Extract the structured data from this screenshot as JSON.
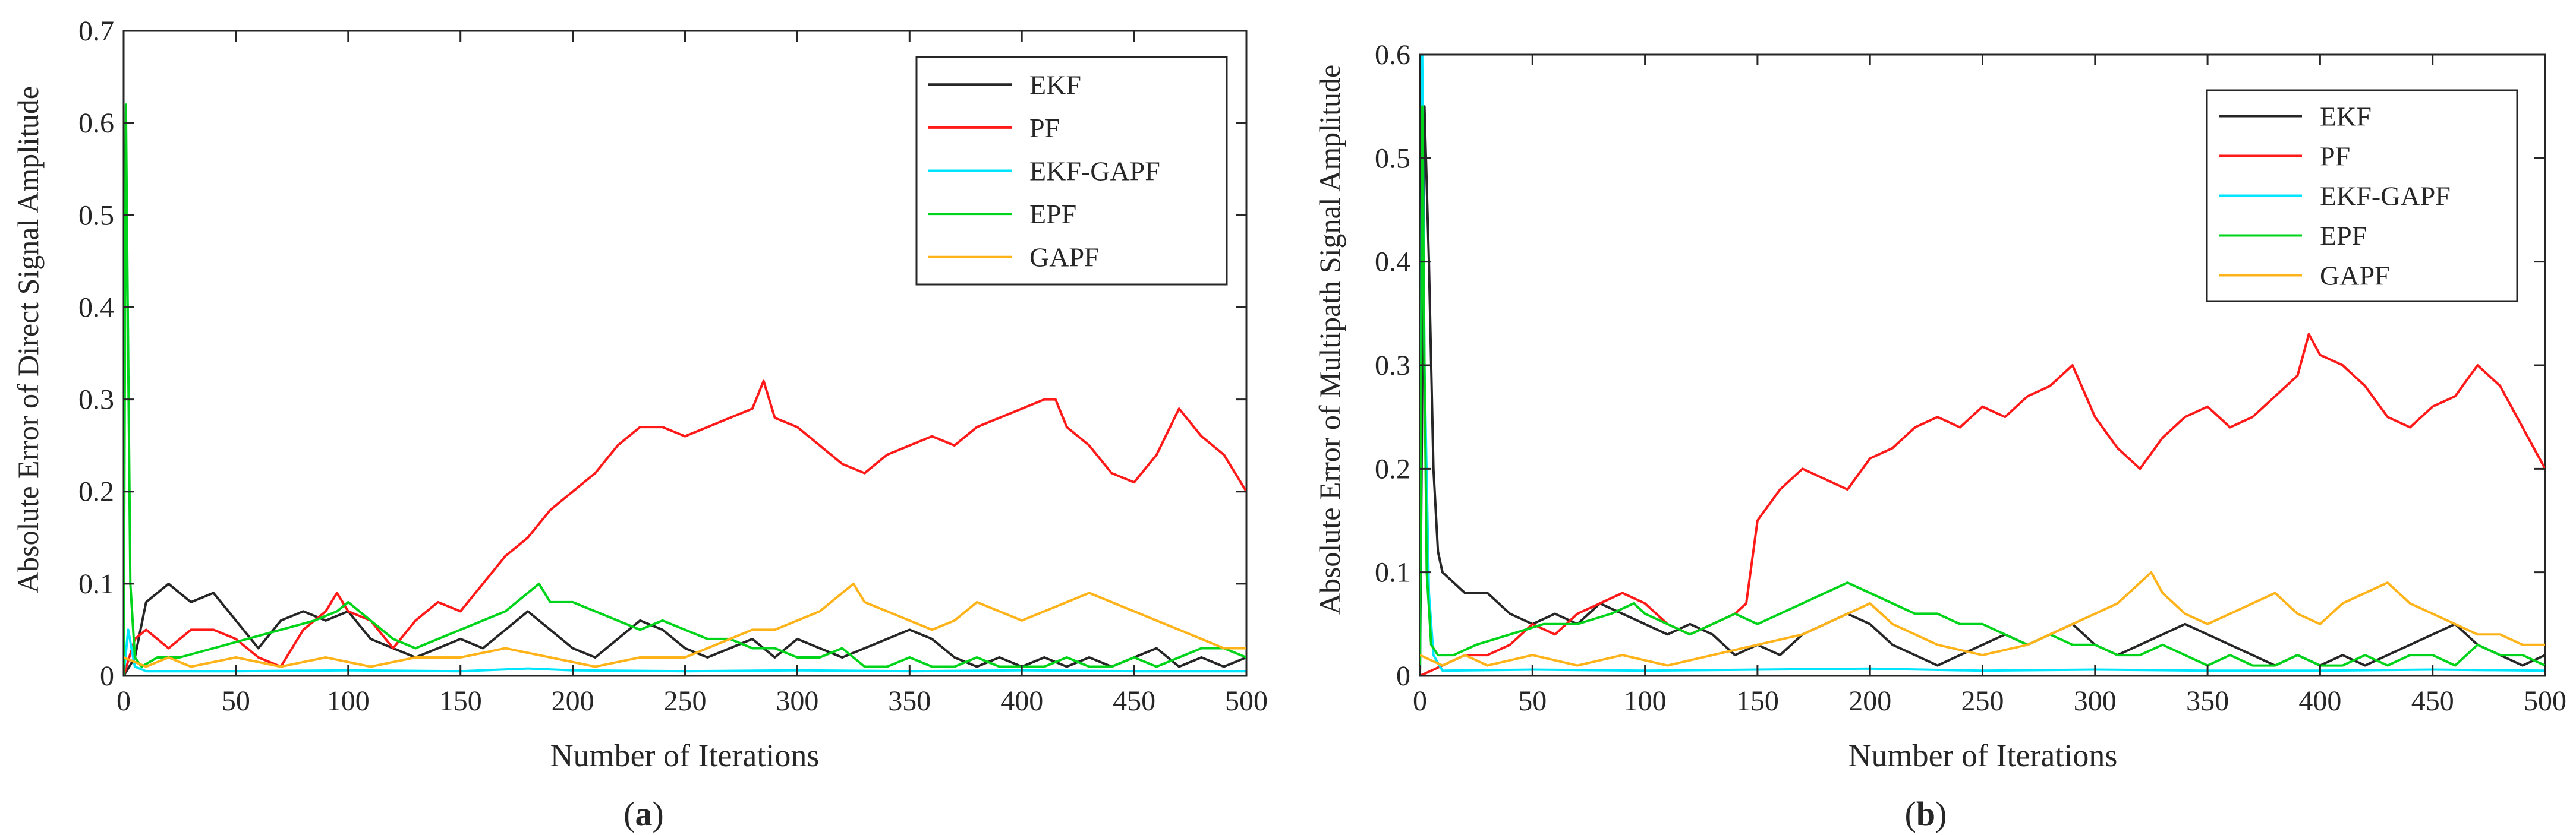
{
  "chart_data": [
    {
      "type": "line",
      "panel_label": "(a)",
      "panel_letter": "a",
      "title": "",
      "xlabel": "Number of Iterations",
      "ylabel": "Absolute Error of Direct Signal Amplitude",
      "xlim": [
        0,
        500
      ],
      "ylim": [
        0,
        0.7
      ],
      "xticks": [
        0,
        50,
        100,
        150,
        200,
        250,
        300,
        350,
        400,
        450,
        500
      ],
      "xtick_labels": [
        "0",
        "50",
        "100",
        "150",
        "200",
        "250",
        "300",
        "350",
        "400",
        "450",
        "500"
      ],
      "yticks": [
        0,
        0.1,
        0.2,
        0.3,
        0.4,
        0.5,
        0.6,
        0.7
      ],
      "ytick_labels": [
        "0",
        "0.1",
        "0.2",
        "0.3",
        "0.4",
        "0.5",
        "0.6",
        "0.7"
      ],
      "grid": false,
      "legend_position": "top-right",
      "series": [
        {
          "name": "EKF",
          "color": "#262626",
          "x": [
            0,
            5,
            10,
            15,
            20,
            25,
            30,
            40,
            50,
            60,
            70,
            80,
            90,
            100,
            110,
            120,
            130,
            140,
            150,
            160,
            170,
            180,
            190,
            200,
            210,
            220,
            230,
            240,
            250,
            260,
            270,
            280,
            290,
            300,
            310,
            320,
            330,
            340,
            350,
            360,
            370,
            380,
            390,
            400,
            410,
            420,
            430,
            440,
            450,
            460,
            470,
            480,
            490,
            500
          ],
          "values": [
            0.0,
            0.02,
            0.08,
            0.09,
            0.1,
            0.09,
            0.08,
            0.09,
            0.06,
            0.03,
            0.06,
            0.07,
            0.06,
            0.07,
            0.04,
            0.03,
            0.02,
            0.03,
            0.04,
            0.03,
            0.05,
            0.07,
            0.05,
            0.03,
            0.02,
            0.04,
            0.06,
            0.05,
            0.03,
            0.02,
            0.03,
            0.04,
            0.02,
            0.04,
            0.03,
            0.02,
            0.03,
            0.04,
            0.05,
            0.04,
            0.02,
            0.01,
            0.02,
            0.01,
            0.02,
            0.01,
            0.02,
            0.01,
            0.02,
            0.03,
            0.01,
            0.02,
            0.01,
            0.02
          ]
        },
        {
          "name": "PF",
          "color": "#ff1a1a",
          "x": [
            0,
            5,
            10,
            15,
            20,
            30,
            40,
            50,
            60,
            70,
            80,
            90,
            95,
            100,
            110,
            120,
            130,
            140,
            150,
            160,
            170,
            180,
            190,
            200,
            210,
            220,
            230,
            240,
            250,
            260,
            270,
            280,
            285,
            290,
            300,
            310,
            320,
            330,
            340,
            350,
            360,
            370,
            380,
            390,
            400,
            410,
            415,
            420,
            430,
            440,
            450,
            460,
            470,
            480,
            490,
            500
          ],
          "values": [
            0.0,
            0.04,
            0.05,
            0.04,
            0.03,
            0.05,
            0.05,
            0.04,
            0.02,
            0.01,
            0.05,
            0.07,
            0.09,
            0.07,
            0.06,
            0.03,
            0.06,
            0.08,
            0.07,
            0.1,
            0.13,
            0.15,
            0.18,
            0.2,
            0.22,
            0.25,
            0.27,
            0.27,
            0.26,
            0.27,
            0.28,
            0.29,
            0.32,
            0.28,
            0.27,
            0.25,
            0.23,
            0.22,
            0.24,
            0.25,
            0.26,
            0.25,
            0.27,
            0.28,
            0.29,
            0.3,
            0.3,
            0.27,
            0.25,
            0.22,
            0.21,
            0.24,
            0.29,
            0.26,
            0.24,
            0.2
          ]
        },
        {
          "name": "EKF-GAPF",
          "color": "#00e5ff",
          "x": [
            0,
            2,
            5,
            10,
            50,
            100,
            150,
            180,
            200,
            250,
            300,
            350,
            400,
            450,
            500
          ],
          "values": [
            0.0,
            0.05,
            0.01,
            0.005,
            0.005,
            0.006,
            0.005,
            0.008,
            0.006,
            0.005,
            0.006,
            0.005,
            0.006,
            0.005,
            0.005
          ]
        },
        {
          "name": "EPF",
          "color": "#00d41a",
          "x": [
            0,
            1,
            2,
            3,
            5,
            8,
            15,
            25,
            40,
            55,
            70,
            85,
            95,
            100,
            110,
            120,
            130,
            140,
            150,
            160,
            170,
            180,
            185,
            190,
            200,
            210,
            220,
            230,
            240,
            250,
            260,
            270,
            280,
            290,
            300,
            310,
            320,
            330,
            340,
            350,
            360,
            370,
            380,
            390,
            400,
            410,
            420,
            430,
            440,
            450,
            460,
            470,
            480,
            490,
            500
          ],
          "values": [
            0.0,
            0.62,
            0.35,
            0.1,
            0.02,
            0.01,
            0.02,
            0.02,
            0.03,
            0.04,
            0.05,
            0.06,
            0.07,
            0.08,
            0.06,
            0.04,
            0.03,
            0.04,
            0.05,
            0.06,
            0.07,
            0.09,
            0.1,
            0.08,
            0.08,
            0.07,
            0.06,
            0.05,
            0.06,
            0.05,
            0.04,
            0.04,
            0.03,
            0.03,
            0.02,
            0.02,
            0.03,
            0.01,
            0.01,
            0.02,
            0.01,
            0.01,
            0.02,
            0.01,
            0.01,
            0.01,
            0.02,
            0.01,
            0.01,
            0.02,
            0.01,
            0.02,
            0.03,
            0.03,
            0.02
          ]
        },
        {
          "name": "GAPF",
          "color": "#ffb31a",
          "x": [
            0,
            10,
            20,
            30,
            50,
            70,
            90,
            110,
            130,
            150,
            170,
            190,
            210,
            230,
            250,
            270,
            280,
            290,
            300,
            310,
            320,
            325,
            330,
            340,
            350,
            360,
            370,
            380,
            390,
            400,
            410,
            420,
            430,
            440,
            450,
            460,
            470,
            480,
            490,
            500
          ],
          "values": [
            0.02,
            0.01,
            0.02,
            0.01,
            0.02,
            0.01,
            0.02,
            0.01,
            0.02,
            0.02,
            0.03,
            0.02,
            0.01,
            0.02,
            0.02,
            0.04,
            0.05,
            0.05,
            0.06,
            0.07,
            0.09,
            0.1,
            0.08,
            0.07,
            0.06,
            0.05,
            0.06,
            0.08,
            0.07,
            0.06,
            0.07,
            0.08,
            0.09,
            0.08,
            0.07,
            0.06,
            0.05,
            0.04,
            0.03,
            0.03
          ]
        }
      ]
    },
    {
      "type": "line",
      "panel_label": "(b)",
      "panel_letter": "b",
      "title": "",
      "xlabel": "Number of Iterations",
      "ylabel": "Absolute Error of Multipath Signal Amplitude",
      "xlim": [
        0,
        500
      ],
      "ylim": [
        0,
        0.6
      ],
      "xticks": [
        0,
        50,
        100,
        150,
        200,
        250,
        300,
        350,
        400,
        450,
        500
      ],
      "xtick_labels": [
        "0",
        "50",
        "100",
        "150",
        "200",
        "250",
        "300",
        "350",
        "400",
        "450",
        "500"
      ],
      "yticks": [
        0,
        0.1,
        0.2,
        0.3,
        0.4,
        0.5,
        0.6
      ],
      "ytick_labels": [
        "0",
        "0.1",
        "0.2",
        "0.3",
        "0.4",
        "0.5",
        "0.6"
      ],
      "grid": false,
      "legend_position": "top-right",
      "series": [
        {
          "name": "EKF",
          "color": "#262626",
          "x": [
            0,
            2,
            4,
            6,
            8,
            10,
            15,
            20,
            30,
            40,
            50,
            60,
            70,
            80,
            90,
            100,
            110,
            120,
            130,
            140,
            150,
            160,
            170,
            180,
            190,
            200,
            210,
            220,
            230,
            240,
            250,
            260,
            270,
            280,
            290,
            300,
            310,
            320,
            330,
            340,
            350,
            360,
            370,
            380,
            390,
            400,
            410,
            420,
            430,
            440,
            450,
            460,
            470,
            480,
            490,
            500
          ],
          "values": [
            0.0,
            0.55,
            0.4,
            0.2,
            0.12,
            0.1,
            0.09,
            0.08,
            0.08,
            0.06,
            0.05,
            0.06,
            0.05,
            0.07,
            0.06,
            0.05,
            0.04,
            0.05,
            0.04,
            0.02,
            0.03,
            0.02,
            0.04,
            0.05,
            0.06,
            0.05,
            0.03,
            0.02,
            0.01,
            0.02,
            0.03,
            0.04,
            0.03,
            0.04,
            0.05,
            0.03,
            0.02,
            0.03,
            0.04,
            0.05,
            0.04,
            0.03,
            0.02,
            0.01,
            0.02,
            0.01,
            0.02,
            0.01,
            0.02,
            0.03,
            0.04,
            0.05,
            0.03,
            0.02,
            0.01,
            0.02
          ]
        },
        {
          "name": "PF",
          "color": "#ff1a1a",
          "x": [
            0,
            10,
            20,
            30,
            40,
            50,
            60,
            70,
            80,
            90,
            100,
            110,
            120,
            130,
            140,
            145,
            150,
            160,
            170,
            180,
            190,
            200,
            210,
            220,
            230,
            240,
            250,
            260,
            270,
            280,
            290,
            300,
            310,
            320,
            330,
            340,
            350,
            360,
            370,
            380,
            390,
            395,
            400,
            410,
            420,
            430,
            440,
            450,
            460,
            470,
            480,
            490,
            500
          ],
          "values": [
            0.0,
            0.01,
            0.02,
            0.02,
            0.03,
            0.05,
            0.04,
            0.06,
            0.07,
            0.08,
            0.07,
            0.05,
            0.04,
            0.05,
            0.06,
            0.07,
            0.15,
            0.18,
            0.2,
            0.19,
            0.18,
            0.21,
            0.22,
            0.24,
            0.25,
            0.24,
            0.26,
            0.25,
            0.27,
            0.28,
            0.3,
            0.25,
            0.22,
            0.2,
            0.23,
            0.25,
            0.26,
            0.24,
            0.25,
            0.27,
            0.29,
            0.33,
            0.31,
            0.3,
            0.28,
            0.25,
            0.24,
            0.26,
            0.27,
            0.3,
            0.28,
            0.24,
            0.2
          ]
        },
        {
          "name": "EKF-GAPF",
          "color": "#00e5ff",
          "x": [
            0,
            1,
            2,
            4,
            6,
            10,
            50,
            100,
            150,
            200,
            250,
            300,
            350,
            400,
            450,
            500
          ],
          "values": [
            0.0,
            0.6,
            0.3,
            0.08,
            0.02,
            0.005,
            0.006,
            0.005,
            0.006,
            0.007,
            0.005,
            0.006,
            0.005,
            0.005,
            0.006,
            0.005
          ]
        },
        {
          "name": "EPF",
          "color": "#00d41a",
          "x": [
            0,
            1,
            2,
            3,
            5,
            8,
            15,
            25,
            40,
            55,
            70,
            85,
            95,
            100,
            110,
            120,
            130,
            140,
            150,
            160,
            170,
            180,
            190,
            200,
            210,
            220,
            230,
            240,
            250,
            260,
            270,
            280,
            290,
            300,
            310,
            320,
            330,
            340,
            350,
            360,
            370,
            380,
            390,
            400,
            410,
            420,
            430,
            440,
            450,
            460,
            470,
            480,
            490,
            500
          ],
          "values": [
            0.0,
            0.55,
            0.3,
            0.1,
            0.03,
            0.02,
            0.02,
            0.03,
            0.04,
            0.05,
            0.05,
            0.06,
            0.07,
            0.06,
            0.05,
            0.04,
            0.05,
            0.06,
            0.05,
            0.06,
            0.07,
            0.08,
            0.09,
            0.08,
            0.07,
            0.06,
            0.06,
            0.05,
            0.05,
            0.04,
            0.03,
            0.04,
            0.03,
            0.03,
            0.02,
            0.02,
            0.03,
            0.02,
            0.01,
            0.02,
            0.01,
            0.01,
            0.02,
            0.01,
            0.01,
            0.02,
            0.01,
            0.02,
            0.02,
            0.01,
            0.03,
            0.02,
            0.02,
            0.01
          ]
        },
        {
          "name": "GAPF",
          "color": "#ffb31a",
          "x": [
            0,
            10,
            20,
            30,
            50,
            70,
            90,
            110,
            130,
            150,
            170,
            190,
            200,
            210,
            230,
            250,
            270,
            290,
            300,
            310,
            320,
            325,
            330,
            340,
            350,
            360,
            370,
            380,
            390,
            400,
            410,
            420,
            430,
            440,
            450,
            460,
            470,
            480,
            490,
            500
          ],
          "values": [
            0.02,
            0.01,
            0.02,
            0.01,
            0.02,
            0.01,
            0.02,
            0.01,
            0.02,
            0.03,
            0.04,
            0.06,
            0.07,
            0.05,
            0.03,
            0.02,
            0.03,
            0.05,
            0.06,
            0.07,
            0.09,
            0.1,
            0.08,
            0.06,
            0.05,
            0.06,
            0.07,
            0.08,
            0.06,
            0.05,
            0.07,
            0.08,
            0.09,
            0.07,
            0.06,
            0.05,
            0.04,
            0.04,
            0.03,
            0.03
          ]
        }
      ]
    }
  ]
}
